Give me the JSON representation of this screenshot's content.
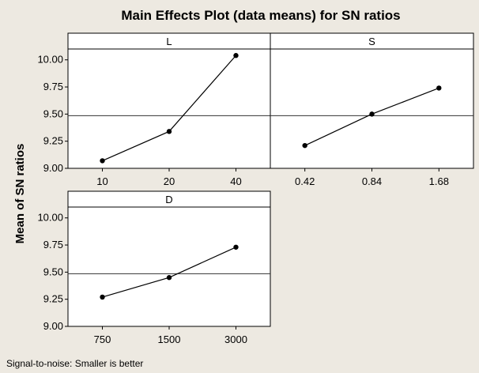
{
  "chart_data": {
    "type": "line",
    "title": "Main Effects Plot (data means) for SN ratios",
    "ylabel": "Mean of SN ratios",
    "footnote": "Signal-to-noise: Smaller is better",
    "ylim": [
      9.0,
      10.1
    ],
    "yticks": [
      "9.00",
      "9.25",
      "9.50",
      "9.75",
      "10.00"
    ],
    "grand_mean": 9.485,
    "colors": {
      "background": "#ede9e1",
      "plot": "#ffffff",
      "line": "#000000"
    },
    "panels": [
      {
        "factor": "L",
        "categories": [
          "10",
          "20",
          "40"
        ],
        "values": [
          9.07,
          9.34,
          10.04
        ]
      },
      {
        "factor": "S",
        "categories": [
          "0.42",
          "0.84",
          "1.68"
        ],
        "values": [
          9.21,
          9.5,
          9.74
        ]
      },
      {
        "factor": "D",
        "categories": [
          "750",
          "1500",
          "3000"
        ],
        "values": [
          9.27,
          9.45,
          9.73
        ]
      }
    ]
  }
}
